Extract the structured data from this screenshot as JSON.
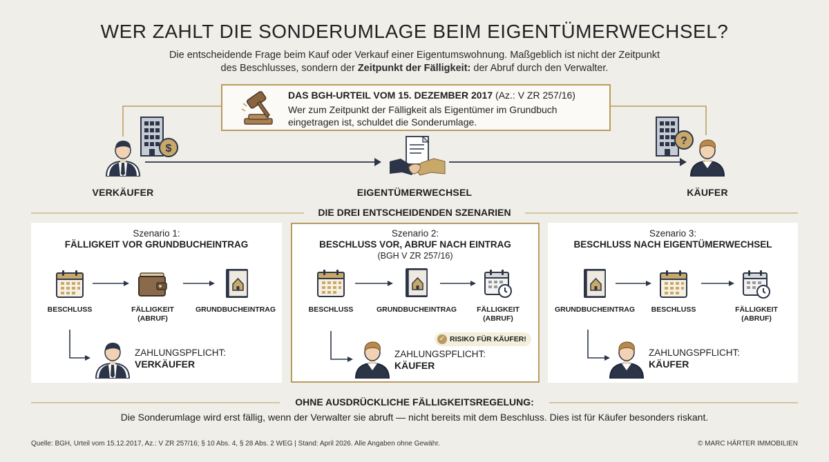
{
  "title": "WER ZAHLT DIE SONDERUMLAGE BEIM EIGENTÜMERWECHSEL?",
  "subtitle": {
    "line1": "Die entscheidende Frage beim Kauf oder Verkauf einer Eigentumswohnung. Maßgeblich ist nicht der Zeitpunkt",
    "line2_pre": "des Beschlusses, sondern der ",
    "line2_bold": "Zeitpunkt der Fälligkeit:",
    "line2_post": " der Abruf durch den Verwalter."
  },
  "bgh": {
    "title_bold": "DAS BGH-URTEIL VOM 15. DEZEMBER 2017",
    "title_ref": " (Az.: V ZR 257/16)",
    "text_line1": "Wer zum Zeitpunkt der Fälligkeit als Eigentümer im Grundbuch",
    "text_line2": "eingetragen ist, schuldet die Sonderumlage."
  },
  "roles": {
    "seller": "VERKÄUFER",
    "transfer": "EIGENTÜMERWECHSEL",
    "buyer": "KÄUFER"
  },
  "scenarios_heading": "DIE DREI ENTSCHEIDENDEN SZENARIEN",
  "scenarios": [
    {
      "label": "Szenario 1:",
      "heading": "FÄLLIGKEIT VOR GRUNDBUCHEINTRAG",
      "steps": [
        "BESCHLUSS",
        "FÄLLIGKEIT\n(ABRUF)",
        "GRUNDBUCHEINTRAG"
      ],
      "step_icons": [
        "calendar-icon",
        "wallet-icon",
        "land-register-book-icon"
      ],
      "pay_label": "ZAHLUNGSPFLICHT:",
      "pay_party": "VERKÄUFER"
    },
    {
      "label": "Szenario 2:",
      "heading": "BESCHLUSS VOR, ABRUF NACH EINTRAG",
      "sub": "(BGH V ZR 257/16)",
      "steps": [
        "BESCHLUSS",
        "GRUNDBUCHEINTRAG",
        "FÄLLIGKEIT\n(ABRUF)"
      ],
      "step_icons": [
        "calendar-icon",
        "land-register-book-icon",
        "calendar-clock-icon"
      ],
      "risk": "RISIKO FÜR KÄUFER!",
      "pay_label": "ZAHLUNGSPFLICHT:",
      "pay_party": "KÄUFER"
    },
    {
      "label": "Szenario 3:",
      "heading": "BESCHLUSS NACH EIGENTÜMERWECHSEL",
      "steps": [
        "GRUNDBUCHEINTRAG",
        "BESCHLUSS",
        "FÄLLIGKEIT\n(ABRUF)"
      ],
      "step_icons": [
        "land-register-book-icon",
        "calendar-icon",
        "calendar-clock-icon"
      ],
      "pay_label": "ZAHLUNGSPFLICHT:",
      "pay_party": "KÄUFER"
    }
  ],
  "bottom": {
    "heading": "OHNE AUSDRÜCKLICHE FÄLLIGKEITSREGELUNG:",
    "text": "Die Sonderumlage wird erst fällig, wenn der Verwalter sie abruft — nicht bereits mit dem Beschluss. Dies ist für Käufer besonders riskant."
  },
  "footer": {
    "source": "Quelle: BGH, Urteil vom 15.12.2017, Az.: V ZR 257/16; § 10 Abs. 4, § 28 Abs. 2 WEG | Stand: April 2026. Alle Angaben ohne Gewähr.",
    "copyright": "© MARC HÄRTER IMMOBILIEN"
  },
  "colors": {
    "background": "#efeee9",
    "gold_accent": "#b89b5e",
    "navy": "#2c3548",
    "card": "#ffffff"
  }
}
